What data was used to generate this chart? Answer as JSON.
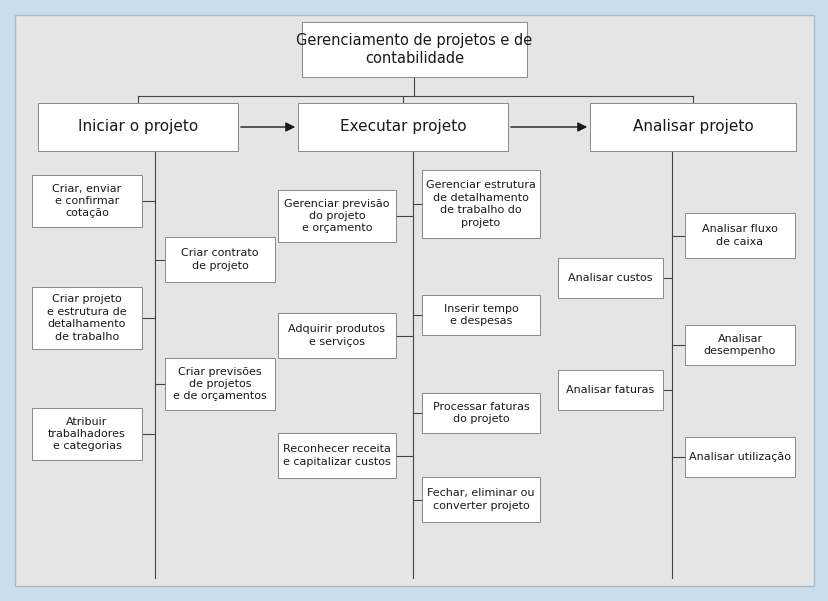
{
  "bg_outer": "#ccdce8",
  "bg_inner": "#e5e5e5",
  "box_fill": "#ffffff",
  "box_edge": "#888888",
  "inner_edge": "#aabbc8",
  "text_color": "#1a1a1a",
  "arrow_color": "#1a1a1a",
  "line_color": "#444444",
  "title": "Gerenciamento de projetos e de\ncontabilidade",
  "level1": [
    "Iniciar o projeto",
    "Executar projeto",
    "Analisar projeto"
  ],
  "col1_children": [
    "Criar, enviar\ne confirmar\ncotação",
    "Criar projeto\ne estrutura de\ndetalhamento\nde trabalho",
    "Atribuir\ntrabalhadores\ne categorias"
  ],
  "col2_children": [
    "Criar contrato\nde projeto",
    "Criar previsões\nde projetos\ne de orçamentos"
  ],
  "col3_children": [
    "Gerenciar previsão\ndo projeto\ne orçamento",
    "Adquirir produtos\ne serviços",
    "Reconhecer receita\ne capitalizar custos"
  ],
  "col4_children": [
    "Gerenciar estrutura\nde detalhamento\nde trabalho do\nprojeto",
    "Inserir tempo\ne despesas",
    "Processar faturas\ndo projeto",
    "Fechar, eliminar ou\nconverter projeto"
  ],
  "col5_children": [
    "Analisar custos",
    "Analisar faturas"
  ],
  "col6_children": [
    "Analisar fluxo\nde caixa",
    "Analisar\ndesempenho",
    "Analisar utilização"
  ]
}
